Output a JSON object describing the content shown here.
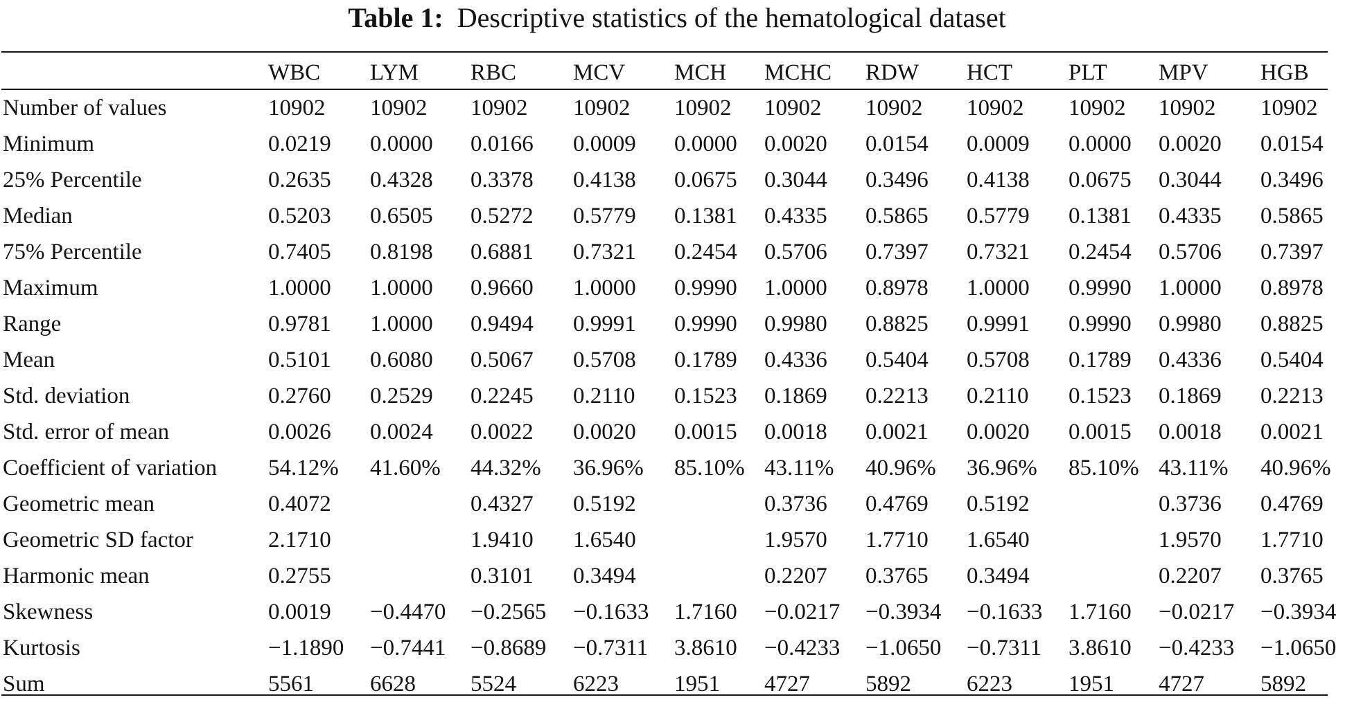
{
  "caption": {
    "label": "Table 1:",
    "title": "Descriptive statistics of the hematological dataset"
  },
  "table": {
    "columns": [
      "WBC",
      "LYM",
      "RBC",
      "MCV",
      "MCH",
      "MCHC",
      "RDW",
      "HCT",
      "PLT",
      "MPV",
      "HGB"
    ],
    "rows": [
      {
        "label": "Number of values",
        "values": [
          "10902",
          "10902",
          "10902",
          "10902",
          "10902",
          "10902",
          "10902",
          "10902",
          "10902",
          "10902",
          "10902"
        ]
      },
      {
        "label": "Minimum",
        "values": [
          "0.0219",
          "0.0000",
          "0.0166",
          "0.0009",
          "0.0000",
          "0.0020",
          "0.0154",
          "0.0009",
          "0.0000",
          "0.0020",
          "0.0154"
        ]
      },
      {
        "label": "25% Percentile",
        "values": [
          "0.2635",
          "0.4328",
          "0.3378",
          "0.4138",
          "0.0675",
          "0.3044",
          "0.3496",
          "0.4138",
          "0.0675",
          "0.3044",
          "0.3496"
        ]
      },
      {
        "label": "Median",
        "values": [
          "0.5203",
          "0.6505",
          "0.5272",
          "0.5779",
          "0.1381",
          "0.4335",
          "0.5865",
          "0.5779",
          "0.1381",
          "0.4335",
          "0.5865"
        ]
      },
      {
        "label": "75% Percentile",
        "values": [
          "0.7405",
          "0.8198",
          "0.6881",
          "0.7321",
          "0.2454",
          "0.5706",
          "0.7397",
          "0.7321",
          "0.2454",
          "0.5706",
          "0.7397"
        ]
      },
      {
        "label": "Maximum",
        "values": [
          "1.0000",
          "1.0000",
          "0.9660",
          "1.0000",
          "0.9990",
          "1.0000",
          "0.8978",
          "1.0000",
          "0.9990",
          "1.0000",
          "0.8978"
        ]
      },
      {
        "label": "Range",
        "values": [
          "0.9781",
          "1.0000",
          "0.9494",
          "0.9991",
          "0.9990",
          "0.9980",
          "0.8825",
          "0.9991",
          "0.9990",
          "0.9980",
          "0.8825"
        ]
      },
      {
        "label": "Mean",
        "values": [
          "0.5101",
          "0.6080",
          "0.5067",
          "0.5708",
          "0.1789",
          "0.4336",
          "0.5404",
          "0.5708",
          "0.1789",
          "0.4336",
          "0.5404"
        ]
      },
      {
        "label": "Std. deviation",
        "values": [
          "0.2760",
          "0.2529",
          "0.2245",
          "0.2110",
          "0.1523",
          "0.1869",
          "0.2213",
          "0.2110",
          "0.1523",
          "0.1869",
          "0.2213"
        ]
      },
      {
        "label": "Std. error of mean",
        "values": [
          "0.0026",
          "0.0024",
          "0.0022",
          "0.0020",
          "0.0015",
          "0.0018",
          "0.0021",
          "0.0020",
          "0.0015",
          "0.0018",
          "0.0021"
        ]
      },
      {
        "label": "Coefficient of variation",
        "values": [
          "54.12%",
          "41.60%",
          "44.32%",
          "36.96%",
          "85.10%",
          "43.11%",
          "40.96%",
          "36.96%",
          "85.10%",
          "43.11%",
          "40.96%"
        ]
      },
      {
        "label": "Geometric mean",
        "values": [
          "0.4072",
          "",
          "0.4327",
          "0.5192",
          "",
          "0.3736",
          "0.4769",
          "0.5192",
          "",
          "0.3736",
          "0.4769"
        ]
      },
      {
        "label": "Geometric SD factor",
        "values": [
          "2.1710",
          "",
          "1.9410",
          "1.6540",
          "",
          "1.9570",
          "1.7710",
          "1.6540",
          "",
          "1.9570",
          "1.7710"
        ]
      },
      {
        "label": "Harmonic mean",
        "values": [
          "0.2755",
          "",
          "0.3101",
          "0.3494",
          "",
          "0.2207",
          "0.3765",
          "0.3494",
          "",
          "0.2207",
          "0.3765"
        ]
      },
      {
        "label": "Skewness",
        "values": [
          "0.0019",
          "−0.4470",
          "−0.2565",
          "−0.1633",
          "1.7160",
          "−0.0217",
          "−0.3934",
          "−0.1633",
          "1.7160",
          "−0.0217",
          "−0.3934"
        ]
      },
      {
        "label": "Kurtosis",
        "values": [
          "−1.1890",
          "−0.7441",
          "−0.8689",
          "−0.7311",
          "3.8610",
          "−0.4233",
          "−1.0650",
          "−0.7311",
          "3.8610",
          "−0.4233",
          "−1.0650"
        ]
      },
      {
        "label": "Sum",
        "values": [
          "5561",
          "6628",
          "5524",
          "6223",
          "1951",
          "4727",
          "5892",
          "6223",
          "1951",
          "4727",
          "5892"
        ]
      }
    ]
  }
}
